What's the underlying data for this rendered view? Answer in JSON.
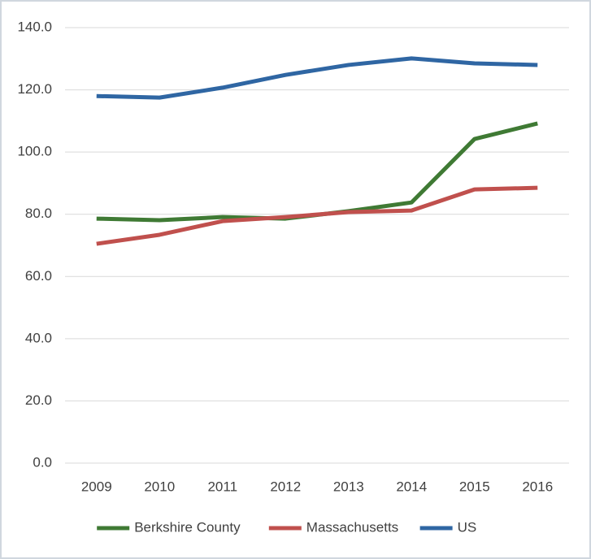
{
  "chart_data": {
    "type": "line",
    "categories": [
      "2009",
      "2010",
      "2011",
      "2012",
      "2013",
      "2014",
      "2015",
      "2016"
    ],
    "series": [
      {
        "name": "Berkshire County",
        "color": "#3f7a34",
        "values": [
          78.6,
          78.1,
          79.1,
          78.6,
          81.0,
          83.8,
          104.2,
          109.2
        ]
      },
      {
        "name": "Massachusetts",
        "color": "#c0504d",
        "values": [
          70.5,
          73.4,
          77.8,
          79.1,
          80.7,
          81.2,
          88.0,
          88.5
        ]
      },
      {
        "name": "US",
        "color": "#2f66a3",
        "values": [
          118.0,
          117.5,
          120.7,
          124.8,
          128.0,
          130.1,
          128.5,
          128.0
        ]
      }
    ],
    "ylim": [
      0,
      140
    ],
    "yticks": [
      {
        "value": 0,
        "label": "0.0"
      },
      {
        "value": 20,
        "label": "20.0"
      },
      {
        "value": 40,
        "label": "40.0"
      },
      {
        "value": 60,
        "label": "60.0"
      },
      {
        "value": 80,
        "label": "80.0"
      },
      {
        "value": 100,
        "label": "100.0"
      },
      {
        "value": 120,
        "label": "120.0"
      },
      {
        "value": 140,
        "label": "140.0"
      }
    ],
    "grid": true,
    "legend": "bottom"
  }
}
